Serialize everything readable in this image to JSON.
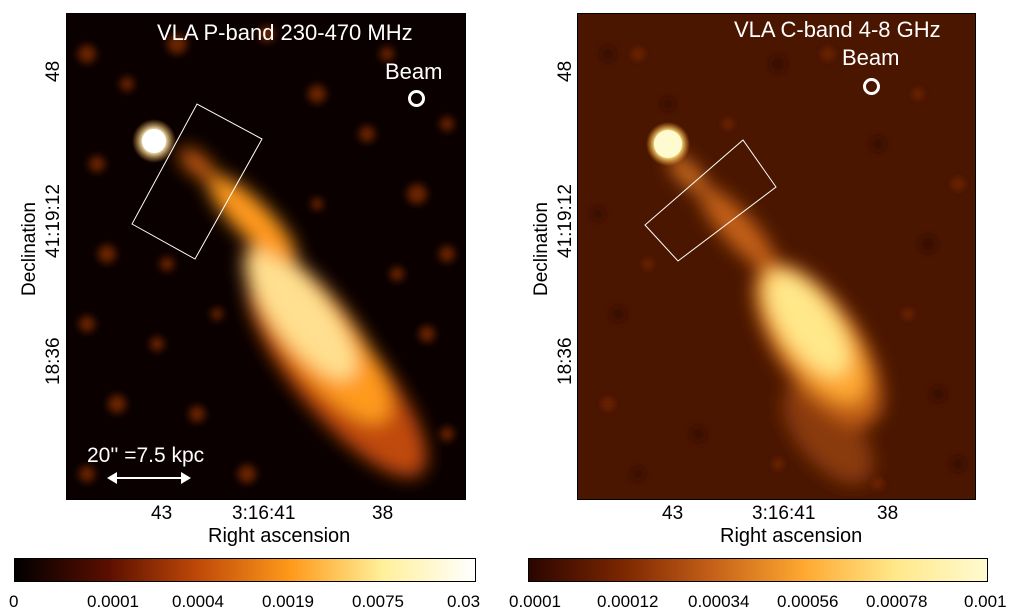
{
  "panels": {
    "left": {
      "title": "VLA P-band 230-470 MHz",
      "beam_label": "Beam",
      "scale_bar": "20'' =7.5 kpc",
      "x_ticks": [
        "43",
        "3:16:41",
        "38"
      ],
      "y_ticks": [
        "48",
        "41:19:12",
        "18:36"
      ],
      "xlabel": "Right ascension",
      "ylabel": "Declination"
    },
    "right": {
      "title": "VLA C-band 4-8 GHz",
      "beam_label": "Beam",
      "x_ticks": [
        "43",
        "3:16:41",
        "38"
      ],
      "y_ticks": [
        "48",
        "41:19:12",
        "18:36"
      ],
      "xlabel": "Right ascension",
      "ylabel": "Declination"
    }
  },
  "colorbars": {
    "left": {
      "ticks": [
        "0",
        "0.0001",
        "0.0004",
        "0.0019",
        "0.0075",
        "0.03"
      ],
      "colors": [
        "#000000",
        "#5a0e00",
        "#c04a08",
        "#ff9a1a",
        "#fff09a",
        "#ffffff"
      ]
    },
    "right": {
      "ticks": [
        "0.0001",
        "0.00012",
        "0.00034",
        "0.00056",
        "0.00078",
        "0.001"
      ],
      "colors": [
        "#2b0500",
        "#7a2500",
        "#c46018",
        "#ffa830",
        "#ffe88a",
        "#fffbd0"
      ]
    }
  }
}
